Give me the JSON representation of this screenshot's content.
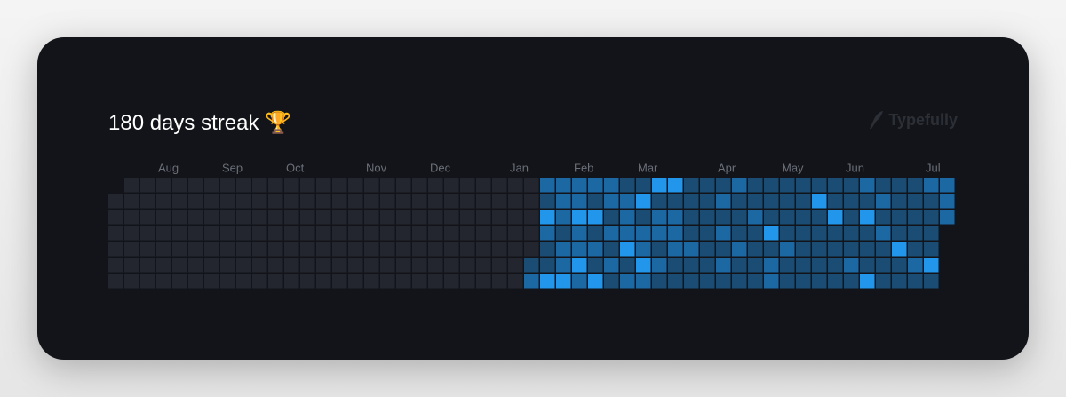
{
  "title": "180 days streak 🏆",
  "brand": "Typefully",
  "months": [
    "Aug",
    "Sep",
    "Oct",
    "Nov",
    "Dec",
    "Jan",
    "Feb",
    "Mar",
    "Apr",
    "May",
    "Jun",
    "Jul"
  ],
  "palette": [
    "#23262e",
    "#1a4c74",
    "#1c68a3",
    "#2196ea"
  ],
  "weeks": [
    [
      null,
      0,
      0,
      0,
      0,
      0,
      0
    ],
    [
      0,
      0,
      0,
      0,
      0,
      0,
      0
    ],
    [
      0,
      0,
      0,
      0,
      0,
      0,
      0
    ],
    [
      0,
      0,
      0,
      0,
      0,
      0,
      0
    ],
    [
      0,
      0,
      0,
      0,
      0,
      0,
      0
    ],
    [
      0,
      0,
      0,
      0,
      0,
      0,
      0
    ],
    [
      0,
      0,
      0,
      0,
      0,
      0,
      0
    ],
    [
      0,
      0,
      0,
      0,
      0,
      0,
      0
    ],
    [
      0,
      0,
      0,
      0,
      0,
      0,
      0
    ],
    [
      0,
      0,
      0,
      0,
      0,
      0,
      0
    ],
    [
      0,
      0,
      0,
      0,
      0,
      0,
      0
    ],
    [
      0,
      0,
      0,
      0,
      0,
      0,
      0
    ],
    [
      0,
      0,
      0,
      0,
      0,
      0,
      0
    ],
    [
      0,
      0,
      0,
      0,
      0,
      0,
      0
    ],
    [
      0,
      0,
      0,
      0,
      0,
      0,
      0
    ],
    [
      0,
      0,
      0,
      0,
      0,
      0,
      0
    ],
    [
      0,
      0,
      0,
      0,
      0,
      0,
      0
    ],
    [
      0,
      0,
      0,
      0,
      0,
      0,
      0
    ],
    [
      0,
      0,
      0,
      0,
      0,
      0,
      0
    ],
    [
      0,
      0,
      0,
      0,
      0,
      0,
      0
    ],
    [
      0,
      0,
      0,
      0,
      0,
      0,
      0
    ],
    [
      0,
      0,
      0,
      0,
      0,
      0,
      0
    ],
    [
      0,
      0,
      0,
      0,
      0,
      0,
      0
    ],
    [
      0,
      0,
      0,
      0,
      0,
      0,
      0
    ],
    [
      0,
      0,
      0,
      0,
      0,
      0,
      0
    ],
    [
      0,
      0,
      0,
      0,
      0,
      0,
      0
    ],
    [
      0,
      0,
      0,
      0,
      0,
      1,
      2
    ],
    [
      2,
      1,
      3,
      2,
      1,
      1,
      3
    ],
    [
      2,
      2,
      2,
      1,
      2,
      2,
      3
    ],
    [
      2,
      2,
      3,
      2,
      2,
      3,
      2
    ],
    [
      2,
      1,
      3,
      1,
      2,
      1,
      3
    ],
    [
      2,
      2,
      1,
      2,
      1,
      2,
      1
    ],
    [
      1,
      2,
      2,
      2,
      3,
      1,
      2
    ],
    [
      1,
      3,
      1,
      2,
      2,
      3,
      2
    ],
    [
      3,
      1,
      2,
      2,
      1,
      2,
      1
    ],
    [
      3,
      1,
      2,
      2,
      2,
      1,
      1
    ],
    [
      1,
      1,
      1,
      1,
      2,
      1,
      1
    ],
    [
      1,
      1,
      1,
      1,
      1,
      1,
      1
    ],
    [
      1,
      2,
      1,
      2,
      1,
      2,
      1
    ],
    [
      2,
      1,
      1,
      1,
      2,
      1,
      1
    ],
    [
      1,
      1,
      2,
      1,
      1,
      1,
      1
    ],
    [
      1,
      1,
      1,
      3,
      1,
      2,
      2
    ],
    [
      1,
      1,
      1,
      1,
      2,
      1,
      1
    ],
    [
      1,
      1,
      1,
      1,
      1,
      1,
      1
    ],
    [
      1,
      3,
      1,
      1,
      1,
      1,
      1
    ],
    [
      1,
      1,
      3,
      1,
      1,
      1,
      1
    ],
    [
      1,
      1,
      1,
      1,
      1,
      2,
      1
    ],
    [
      2,
      1,
      3,
      1,
      1,
      1,
      3
    ],
    [
      1,
      2,
      1,
      2,
      1,
      1,
      1
    ],
    [
      1,
      1,
      1,
      1,
      3,
      1,
      1
    ],
    [
      1,
      1,
      1,
      1,
      1,
      2,
      1
    ],
    [
      2,
      1,
      1,
      1,
      1,
      3,
      1
    ],
    [
      2,
      2,
      2,
      null,
      null,
      null,
      null
    ]
  ]
}
